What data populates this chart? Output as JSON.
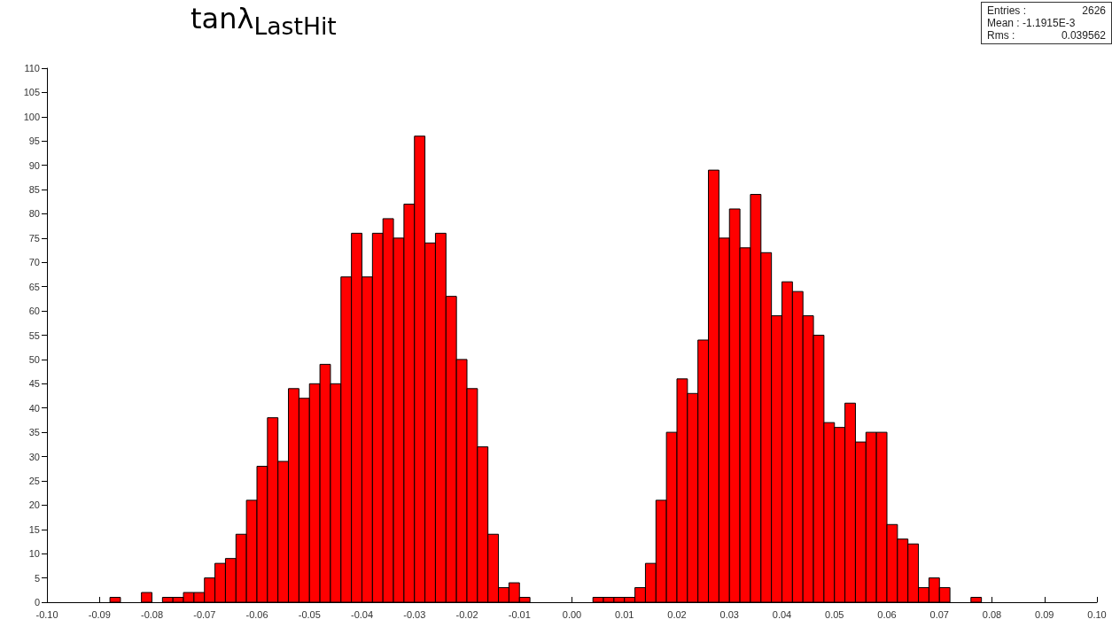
{
  "chart_data": {
    "type": "histogram",
    "title": "tanλ$_{LastHit}$",
    "bins": [
      -0.1,
      -0.098,
      -0.096,
      -0.094,
      -0.092,
      -0.09,
      -0.088,
      -0.086,
      -0.084,
      -0.082,
      -0.08,
      -0.078,
      -0.076,
      -0.074,
      -0.072,
      -0.07,
      -0.068,
      -0.066,
      -0.064,
      -0.062,
      -0.06,
      -0.058,
      -0.056,
      -0.054,
      -0.052,
      -0.05,
      -0.048,
      -0.046,
      -0.044,
      -0.042,
      -0.04,
      -0.038,
      -0.036,
      -0.034,
      -0.032,
      -0.03,
      -0.028,
      -0.026,
      -0.024,
      -0.022,
      -0.02,
      -0.018,
      -0.016,
      -0.014,
      -0.012,
      -0.01,
      -0.008,
      -0.006,
      -0.004,
      -0.002,
      0,
      0.002,
      0.004,
      0.006,
      0.008,
      0.01,
      0.012,
      0.014,
      0.016,
      0.018,
      0.02,
      0.022,
      0.024,
      0.026,
      0.028,
      0.03,
      0.032,
      0.034,
      0.036,
      0.038,
      0.04,
      0.042,
      0.044,
      0.046,
      0.048,
      0.05,
      0.052,
      0.054,
      0.056,
      0.058,
      0.06,
      0.062,
      0.064,
      0.066,
      0.068,
      0.07,
      0.072,
      0.074,
      0.076,
      0.078,
      0.08,
      0.082,
      0.084,
      0.086,
      0.088,
      0.09,
      0.092,
      0.094,
      0.096,
      0.098,
      0.1
    ],
    "values": [
      0,
      0,
      0,
      0,
      0,
      0,
      1,
      0,
      0,
      2,
      0,
      1,
      1,
      2,
      2,
      5,
      8,
      9,
      14,
      21,
      28,
      38,
      29,
      44,
      42,
      45,
      49,
      45,
      67,
      76,
      67,
      76,
      79,
      75,
      82,
      96,
      74,
      76,
      63,
      50,
      44,
      32,
      14,
      3,
      4,
      1,
      0,
      0,
      0,
      0,
      0,
      0,
      1,
      1,
      1,
      1,
      3,
      8,
      21,
      35,
      46,
      43,
      54,
      89,
      75,
      81,
      73,
      84,
      72,
      59,
      66,
      64,
      59,
      55,
      37,
      36,
      41,
      33,
      35,
      35,
      16,
      13,
      12,
      3,
      5,
      3,
      0,
      0,
      1,
      0,
      0,
      0,
      0,
      0,
      0,
      0,
      0,
      0,
      0,
      0
    ],
    "color": "#ff0000",
    "xlim": [
      -0.1,
      0.1
    ],
    "xticks": [
      {
        "value": -0.1,
        "label": "-0.10"
      },
      -0.09,
      -0.08,
      -0.07,
      -0.06,
      -0.05,
      -0.04,
      -0.03,
      -0.02,
      -0.01,
      {
        "value": 0,
        "label": "0.00"
      },
      0.01,
      0.02,
      0.03,
      0.04,
      0.05,
      0.06,
      0.07,
      0.08,
      0.09,
      {
        "value": 0.1,
        "label": "0.10"
      }
    ],
    "ylim": [
      0,
      110
    ],
    "yticks": [
      0,
      5,
      10,
      15,
      20,
      25,
      30,
      35,
      40,
      45,
      50,
      55,
      60,
      65,
      70,
      75,
      80,
      85,
      90,
      95,
      100,
      105,
      110
    ],
    "grid": false,
    "annotations": [
      "Entries :\t2626",
      "Mean : -1.1915E-3",
      "Rms :\t0.039562"
    ]
  }
}
